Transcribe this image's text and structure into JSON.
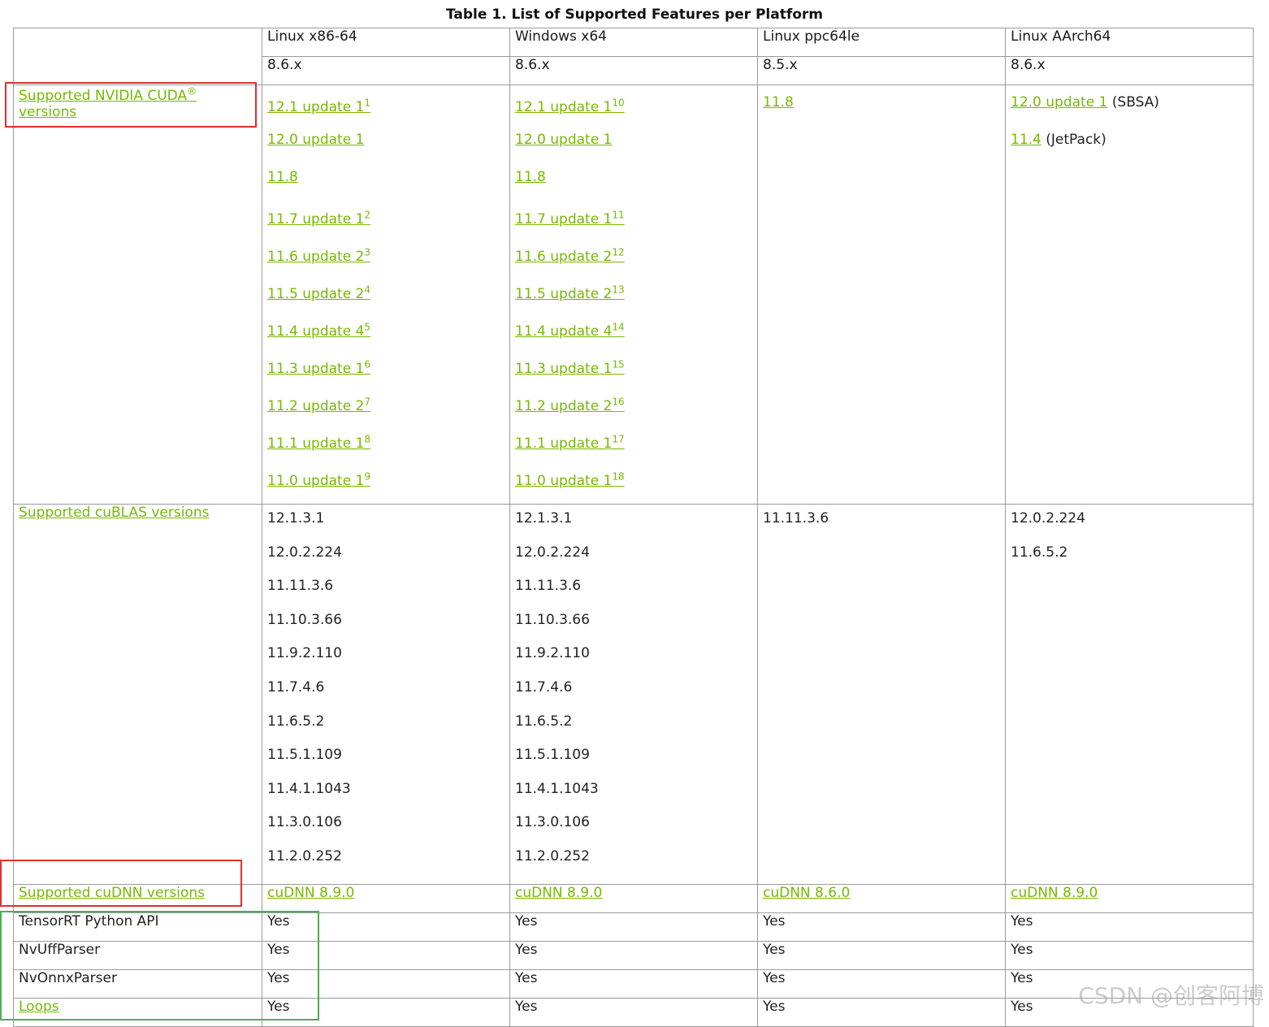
{
  "caption": "Table 1. List of Supported Features per Platform",
  "platforms": [
    {
      "name": "Linux x86-64",
      "version": "8.6.x"
    },
    {
      "name": "Windows x64",
      "version": "8.6.x"
    },
    {
      "name": "Linux ppc64le",
      "version": "8.5.x"
    },
    {
      "name": "Linux AArch64",
      "version": "8.6.x"
    }
  ],
  "rows": {
    "cuda": {
      "label": "Supported NVIDIA CUDA",
      "label_sup": "®",
      "label_suffix": " versions",
      "cells": [
        [
          {
            "text": "12.1 update 1",
            "sup": "1"
          },
          {
            "text": "12.0 update 1",
            "sup": ""
          },
          {
            "text": "11.8",
            "sup": ""
          },
          {
            "text": "11.7 update 1",
            "sup": "2"
          },
          {
            "text": "11.6 update 2",
            "sup": "3"
          },
          {
            "text": "11.5 update 2",
            "sup": "4"
          },
          {
            "text": "11.4 update 4",
            "sup": "5"
          },
          {
            "text": "11.3 update 1",
            "sup": "6"
          },
          {
            "text": "11.2 update 2",
            "sup": "7"
          },
          {
            "text": "11.1 update 1",
            "sup": "8"
          },
          {
            "text": "11.0 update 1",
            "sup": "9"
          }
        ],
        [
          {
            "text": "12.1 update 1",
            "sup": "10"
          },
          {
            "text": "12.0 update 1",
            "sup": ""
          },
          {
            "text": "11.8",
            "sup": ""
          },
          {
            "text": "11.7 update 1",
            "sup": "11"
          },
          {
            "text": "11.6 update 2",
            "sup": "12"
          },
          {
            "text": "11.5 update 2",
            "sup": "13"
          },
          {
            "text": "11.4 update 4",
            "sup": "14"
          },
          {
            "text": "11.3 update 1",
            "sup": "15"
          },
          {
            "text": "11.2 update 2",
            "sup": "16"
          },
          {
            "text": "11.1 update 1",
            "sup": "17"
          },
          {
            "text": "11.0 update 1",
            "sup": "18"
          }
        ],
        [
          {
            "text": "11.8",
            "sup": ""
          }
        ],
        [
          {
            "text": "12.0 update 1",
            "sup": "",
            "note": " (SBSA)"
          },
          {
            "text": "11.4",
            "sup": "",
            "note": " (JetPack)"
          }
        ]
      ]
    },
    "cublas": {
      "label": "Supported cuBLAS versions",
      "cells": [
        [
          "12.1.3.1",
          "12.0.2.224",
          "11.11.3.6",
          "11.10.3.66",
          "11.9.2.110",
          "11.7.4.6",
          "11.6.5.2",
          "11.5.1.109",
          "11.4.1.1043",
          "11.3.0.106",
          "11.2.0.252"
        ],
        [
          "12.1.3.1",
          "12.0.2.224",
          "11.11.3.6",
          "11.10.3.66",
          "11.9.2.110",
          "11.7.4.6",
          "11.6.5.2",
          "11.5.1.109",
          "11.4.1.1043",
          "11.3.0.106",
          "11.2.0.252"
        ],
        [
          "11.11.3.6"
        ],
        [
          "12.0.2.224",
          "11.6.5.2"
        ]
      ]
    },
    "cudnn": {
      "label": "Supported cuDNN versions",
      "cells": [
        "cuDNN 8.9.0",
        "cuDNN 8.9.0",
        "cuDNN 8.6.0",
        "cuDNN 8.9.0"
      ]
    },
    "python_api": {
      "label": "TensorRT Python API",
      "cells": [
        "Yes",
        "Yes",
        "Yes",
        "Yes"
      ]
    },
    "uff": {
      "label": "NvUffParser",
      "cells": [
        "Yes",
        "Yes",
        "Yes",
        "Yes"
      ]
    },
    "onnx": {
      "label": "NvOnnxParser",
      "cells": [
        "Yes",
        "Yes",
        "Yes",
        "Yes"
      ]
    },
    "loops": {
      "label": "Loops",
      "cells": [
        "Yes",
        "Yes",
        "Yes",
        "Yes"
      ]
    }
  },
  "annotations": {
    "red_color": "#e03030",
    "green_color": "#4caf50",
    "link_color": "#76b900"
  },
  "watermark": "CSDN @创客阿博"
}
